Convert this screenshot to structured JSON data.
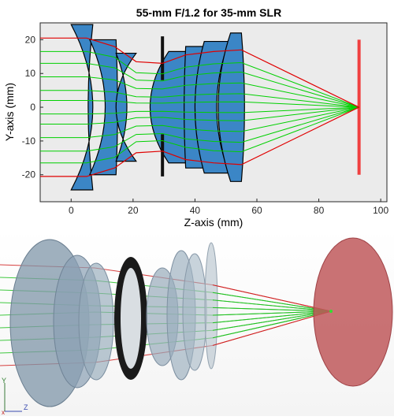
{
  "chart_data": {
    "type": "line",
    "title": "55-mm F/1.2 for 35-mm SLR",
    "xlabel": "Z-axis (mm)",
    "ylabel": "Y-axis (mm)",
    "xlim": [
      -10,
      102
    ],
    "ylim": [
      -28,
      25
    ],
    "xticks": [
      0,
      20,
      40,
      60,
      80,
      100
    ],
    "yticks": [
      -20,
      -10,
      0,
      10,
      20
    ],
    "grid": false,
    "focus_point": [
      93,
      0
    ],
    "image_plane": {
      "z": 93,
      "y_min": -20,
      "y_max": 20
    },
    "aperture_stop": {
      "z": 29.5,
      "y_min": -20.5,
      "y_max": 21
    },
    "lens_elements": [
      {
        "z_front": 0,
        "z_back": 7,
        "front_sag": 7,
        "back_sag": -1.5,
        "half_height": 24.5
      },
      {
        "z_front": 6,
        "z_back": 14.5,
        "front_sag": 5,
        "back_sag": 0.5,
        "half_height": 20
      },
      {
        "z_front": 14.5,
        "z_back": 21,
        "front_sag": 3.5,
        "back_sag": -6.5,
        "half_height": 16
      },
      {
        "z_front": 31.5,
        "z_back": 38,
        "front_sag": -6,
        "back_sag": -1,
        "half_height": 16.5
      },
      {
        "z_front": 37,
        "z_back": 46,
        "front_sag": -0.5,
        "back_sag": -3,
        "half_height": 18
      },
      {
        "z_front": 43,
        "z_back": 51,
        "front_sag": -3,
        "back_sag": -4,
        "half_height": 19.5
      },
      {
        "z_front": 51.5,
        "z_back": 55,
        "front_sag": -4,
        "back_sag": 1,
        "half_height": 22
      }
    ],
    "series": [
      {
        "color": "#e00000",
        "role": "marginal",
        "x": [
          -10,
          5,
          14,
          21,
          29.5,
          37,
          46,
          55,
          93
        ],
        "y": [
          20.5,
          20.5,
          18,
          13.5,
          13,
          15.5,
          16.5,
          17,
          0
        ]
      },
      {
        "color": "#e00000",
        "role": "marginal",
        "x": [
          -10,
          5,
          14,
          21,
          29.5,
          37,
          46,
          55,
          93
        ],
        "y": [
          -20.5,
          -20.5,
          -18,
          -13.5,
          -13,
          -15.5,
          -16.5,
          -17,
          0
        ]
      },
      {
        "color": "#00d000",
        "role": "meridional",
        "heights": [
          -16.5,
          -13,
          -9,
          -5,
          -2,
          2,
          5,
          9,
          13,
          16.5
        ]
      }
    ]
  },
  "scene3d": {
    "axis_labels": {
      "y": "Y",
      "z": "Z",
      "x": "x"
    },
    "colors": {
      "lens": "#8fa5b8",
      "stop": "#111111",
      "sensor": "#c0595c",
      "marginal_ray": "#d02020",
      "ray": "#20c020"
    }
  }
}
